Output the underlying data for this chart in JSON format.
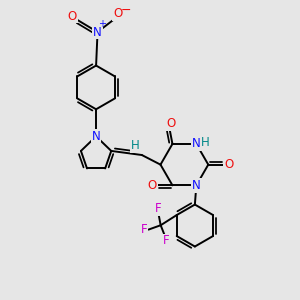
{
  "bg_color": "#e6e6e6",
  "bond_color": "#000000",
  "bond_width": 1.4,
  "atom_colors": {
    "N": "#1010ff",
    "O": "#ee1111",
    "F": "#cc00cc",
    "H": "#008888",
    "C": "#000000",
    "Nplus": "#1010ff"
  },
  "font_size": 8.5
}
